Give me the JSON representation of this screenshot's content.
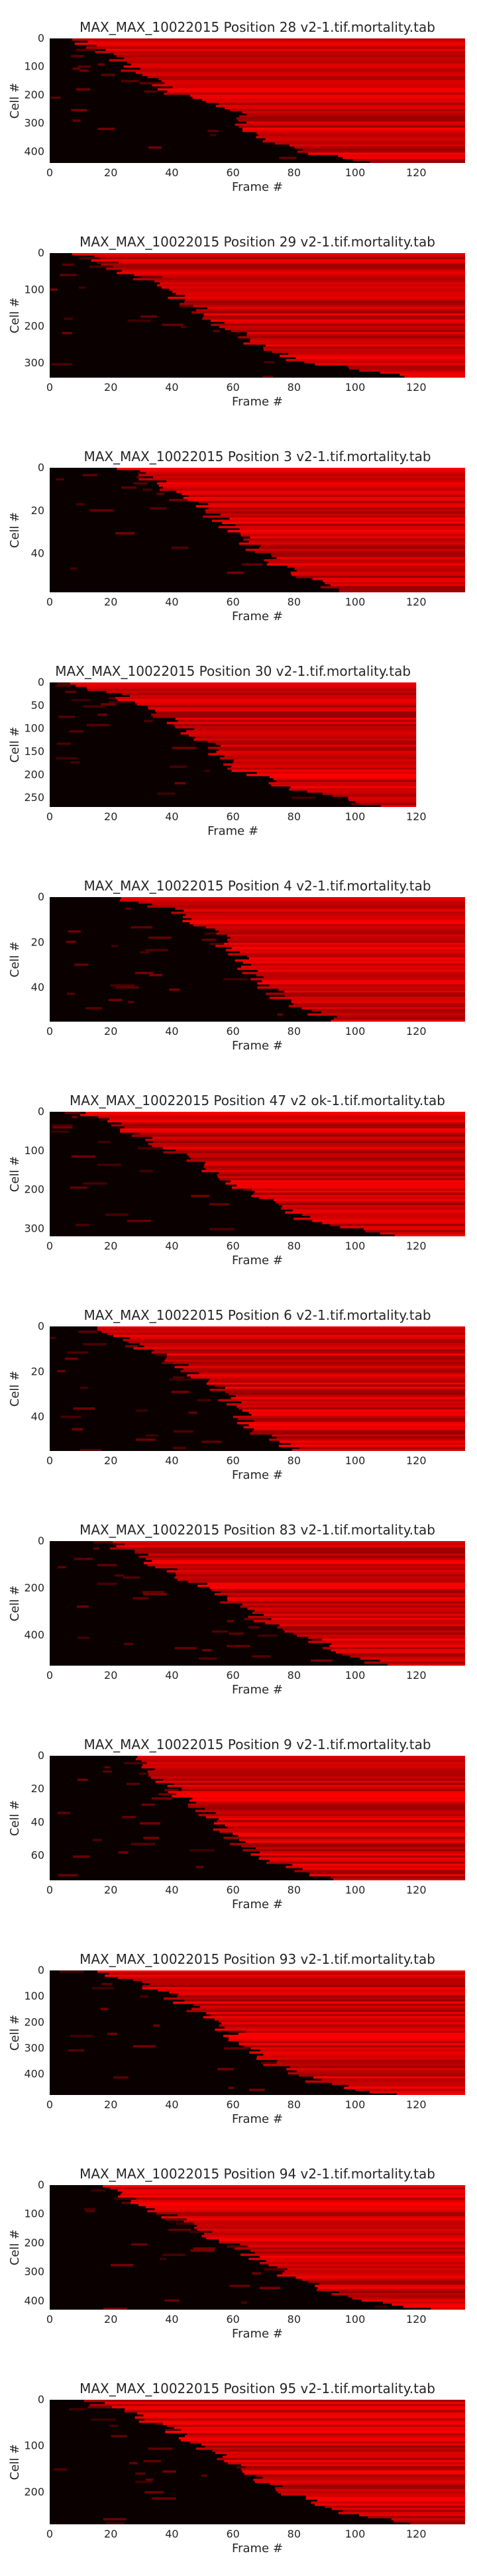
{
  "figure": {
    "background": "#ffffff",
    "cmap": "black-to-red",
    "text_color": "#262626"
  },
  "chart_data": [
    {
      "type": "heatmap",
      "title": "MAX_MAX_10022015 Position 28 v2-1.tif.mortality.tab",
      "xlabel": "Frame #",
      "ylabel": "Cell #",
      "xlim": [
        0,
        136
      ],
      "ylim": [
        440,
        0
      ],
      "xticks": [
        0,
        20,
        40,
        60,
        80,
        100,
        120
      ],
      "yticks": [
        0,
        100,
        200,
        300,
        400
      ],
      "onset_profile": [
        [
          0,
          5
        ],
        [
          0.05,
          12
        ],
        [
          0.15,
          20
        ],
        [
          0.3,
          30
        ],
        [
          0.45,
          42
        ],
        [
          0.55,
          58
        ],
        [
          0.6,
          62
        ],
        [
          0.7,
          63
        ],
        [
          0.8,
          68
        ],
        [
          0.9,
          80
        ],
        [
          1,
          105
        ]
      ]
    },
    {
      "type": "heatmap",
      "title": "MAX_MAX_10022015 Position 29 v2-1.tif.mortality.tab",
      "xlabel": "Frame #",
      "ylabel": "Cell #",
      "xlim": [
        0,
        136
      ],
      "ylim": [
        340,
        0
      ],
      "xticks": [
        0,
        20,
        40,
        60,
        80,
        100,
        120
      ],
      "yticks": [
        0,
        100,
        200,
        300
      ],
      "onset_profile": [
        [
          0,
          8
        ],
        [
          0.1,
          20
        ],
        [
          0.25,
          33
        ],
        [
          0.4,
          45
        ],
        [
          0.55,
          55
        ],
        [
          0.7,
          65
        ],
        [
          0.85,
          78
        ],
        [
          1,
          120
        ]
      ]
    },
    {
      "type": "heatmap",
      "title": "MAX_MAX_10022015 Position 3 v2-1.tif.mortality.tab",
      "xlabel": "Frame #",
      "ylabel": "Cell #",
      "xlim": [
        0,
        136
      ],
      "ylim": [
        58,
        0
      ],
      "xticks": [
        0,
        20,
        40,
        60,
        80,
        100,
        120
      ],
      "yticks": [
        0,
        20,
        40
      ],
      "onset_profile": [
        [
          0,
          25
        ],
        [
          0.15,
          38
        ],
        [
          0.35,
          52
        ],
        [
          0.55,
          62
        ],
        [
          0.75,
          72
        ],
        [
          0.9,
          85
        ],
        [
          1,
          98
        ]
      ]
    },
    {
      "type": "heatmap",
      "title": "MAX_MAX_10022015 Position 30 v2-1.tif.mortality.tab",
      "xlabel": "Frame #",
      "ylabel": "Cell #",
      "xlim": [
        0,
        120
      ],
      "ylim": [
        270,
        0
      ],
      "xticks": [
        0,
        20,
        40,
        60,
        80,
        100,
        120
      ],
      "yticks": [
        0,
        50,
        100,
        150,
        200,
        250
      ],
      "onset_profile": [
        [
          0,
          5
        ],
        [
          0.1,
          22
        ],
        [
          0.3,
          40
        ],
        [
          0.5,
          52
        ],
        [
          0.7,
          62
        ],
        [
          0.85,
          78
        ],
        [
          1,
          110
        ]
      ]
    },
    {
      "type": "heatmap",
      "title": "MAX_MAX_10022015 Position 4 v2-1.tif.mortality.tab",
      "xlabel": "Frame #",
      "ylabel": "Cell #",
      "xlim": [
        0,
        136
      ],
      "ylim": [
        55,
        0
      ],
      "xticks": [
        0,
        20,
        40,
        60,
        80,
        100,
        120
      ],
      "yticks": [
        0,
        20,
        40
      ],
      "onset_profile": [
        [
          0,
          22
        ],
        [
          0.1,
          40
        ],
        [
          0.3,
          55
        ],
        [
          0.5,
          62
        ],
        [
          0.7,
          70
        ],
        [
          0.85,
          78
        ],
        [
          1,
          95
        ]
      ]
    },
    {
      "type": "heatmap",
      "title": "MAX_MAX_10022015 Position 47 v2 ok-1.tif.mortality.tab",
      "xlabel": "Frame #",
      "ylabel": "Cell #",
      "xlim": [
        0,
        136
      ],
      "ylim": [
        320,
        0
      ],
      "xticks": [
        0,
        20,
        40,
        60,
        80,
        100,
        120
      ],
      "yticks": [
        0,
        100,
        200,
        300
      ],
      "onset_profile": [
        [
          0,
          8
        ],
        [
          0.1,
          22
        ],
        [
          0.3,
          38
        ],
        [
          0.5,
          55
        ],
        [
          0.7,
          70
        ],
        [
          0.85,
          82
        ],
        [
          1,
          112
        ]
      ]
    },
    {
      "type": "heatmap",
      "title": "MAX_MAX_10022015 Position 6 v2-1.tif.mortality.tab",
      "xlabel": "Frame #",
      "ylabel": "Cell #",
      "xlim": [
        0,
        136
      ],
      "ylim": [
        55,
        0
      ],
      "xticks": [
        0,
        20,
        40,
        60,
        80,
        100,
        120
      ],
      "yticks": [
        0,
        20,
        40
      ],
      "onset_profile": [
        [
          0,
          12
        ],
        [
          0.1,
          25
        ],
        [
          0.3,
          42
        ],
        [
          0.5,
          55
        ],
        [
          0.7,
          62
        ],
        [
          0.85,
          68
        ],
        [
          1,
          80
        ]
      ]
    },
    {
      "type": "heatmap",
      "title": "MAX_MAX_10022015 Position 83 v2-1.tif.mortality.tab",
      "xlabel": "Frame #",
      "ylabel": "Cell #",
      "xlim": [
        0,
        136
      ],
      "ylim": [
        530,
        0
      ],
      "xticks": [
        0,
        20,
        40,
        60,
        80,
        100,
        120
      ],
      "yticks": [
        0,
        200,
        400
      ],
      "onset_profile": [
        [
          0,
          15
        ],
        [
          0.1,
          28
        ],
        [
          0.3,
          45
        ],
        [
          0.5,
          60
        ],
        [
          0.7,
          75
        ],
        [
          0.85,
          92
        ],
        [
          1,
          110
        ]
      ]
    },
    {
      "type": "heatmap",
      "title": "MAX_MAX_10022015 Position 9 v2-1.tif.mortality.tab",
      "xlabel": "Frame #",
      "ylabel": "Cell #",
      "xlim": [
        0,
        136
      ],
      "ylim": [
        75,
        0
      ],
      "xticks": [
        0,
        20,
        40,
        60,
        80,
        100,
        120
      ],
      "yticks": [
        0,
        20,
        40,
        60
      ],
      "onset_profile": [
        [
          0,
          25
        ],
        [
          0.15,
          35
        ],
        [
          0.35,
          45
        ],
        [
          0.55,
          55
        ],
        [
          0.75,
          65
        ],
        [
          0.9,
          78
        ],
        [
          1,
          92
        ]
      ]
    },
    {
      "type": "heatmap",
      "title": "MAX_MAX_10022015 Position 93 v2-1.tif.mortality.tab",
      "xlabel": "Frame #",
      "ylabel": "Cell #",
      "xlim": [
        0,
        136
      ],
      "ylim": [
        480,
        0
      ],
      "xticks": [
        0,
        20,
        40,
        60,
        80,
        100,
        120
      ],
      "yticks": [
        0,
        100,
        200,
        300,
        400
      ],
      "onset_profile": [
        [
          0,
          15
        ],
        [
          0.15,
          35
        ],
        [
          0.35,
          50
        ],
        [
          0.55,
          62
        ],
        [
          0.75,
          72
        ],
        [
          0.9,
          88
        ],
        [
          1,
          112
        ]
      ]
    },
    {
      "type": "heatmap",
      "title": "MAX_MAX_10022015 Position 94 v2-1.tif.mortality.tab",
      "xlabel": "Frame #",
      "ylabel": "Cell #",
      "xlim": [
        0,
        136
      ],
      "ylim": [
        430,
        0
      ],
      "xticks": [
        0,
        20,
        40,
        60,
        80,
        100,
        120
      ],
      "yticks": [
        0,
        100,
        200,
        300,
        400
      ],
      "onset_profile": [
        [
          0,
          15
        ],
        [
          0.15,
          30
        ],
        [
          0.35,
          48
        ],
        [
          0.55,
          65
        ],
        [
          0.75,
          80
        ],
        [
          0.9,
          98
        ],
        [
          1,
          125
        ]
      ]
    },
    {
      "type": "heatmap",
      "title": "MAX_MAX_10022015 Position 95 v2-1.tif.mortality.tab",
      "xlabel": "Frame #",
      "ylabel": "Cell #",
      "xlim": [
        0,
        136
      ],
      "ylim": [
        270,
        0
      ],
      "xticks": [
        0,
        20,
        40,
        60,
        80,
        100,
        120
      ],
      "yticks": [
        0,
        100,
        200
      ],
      "onset_profile": [
        [
          0,
          12
        ],
        [
          0.15,
          30
        ],
        [
          0.35,
          48
        ],
        [
          0.55,
          62
        ],
        [
          0.75,
          78
        ],
        [
          0.9,
          95
        ],
        [
          1,
          120
        ]
      ]
    }
  ]
}
